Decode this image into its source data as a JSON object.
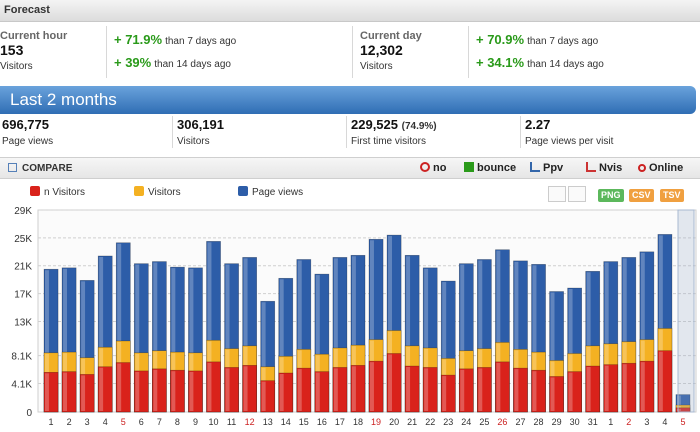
{
  "forecast": {
    "title": "Forecast",
    "current_hour": {
      "label": "Current hour",
      "value": "153",
      "unit": "Visitors",
      "cmp7_pct": "+ 71.9%",
      "cmp7_text": "than 7 days ago",
      "cmp14_pct": "+ 39%",
      "cmp14_text": "than 14 days ago"
    },
    "current_day": {
      "label": "Current day",
      "value": "12,302",
      "unit": "Visitors",
      "cmp7_pct": "+ 70.9%",
      "cmp7_text": "than 7 days ago",
      "cmp14_pct": "+ 34.1%",
      "cmp14_text": "than 14 days ago"
    }
  },
  "summary": {
    "title": "Last 2 months",
    "items": [
      {
        "value": "696,775",
        "note": "",
        "label": "Page views"
      },
      {
        "value": "306,191",
        "note": "",
        "label": "Visitors"
      },
      {
        "value": "229,525",
        "note": "(74.9%)",
        "label": "First time visitors"
      },
      {
        "value": "2.27",
        "note": "",
        "label": "Page views per visit"
      }
    ]
  },
  "compare": {
    "title": "COMPARE",
    "buttons": [
      {
        "label": "no",
        "icon": "no-icon",
        "color": "#cc2222"
      },
      {
        "label": "bounce",
        "icon": "bounce-icon",
        "color": "#2a9a1a"
      },
      {
        "label": "Ppv",
        "icon": "chart-small-icon",
        "color": "#3366aa"
      },
      {
        "label": "Nvis",
        "icon": "chart-small-icon",
        "color": "#cc3333"
      },
      {
        "label": "Online",
        "icon": "broadcast-icon",
        "color": "#cc2222"
      }
    ]
  },
  "legend": [
    {
      "label": "n Visitors",
      "color": "#d9221b"
    },
    {
      "label": "Visitors",
      "color": "#f4b122"
    },
    {
      "label": "Page views",
      "color": "#2d5da8"
    }
  ],
  "exports": [
    {
      "label": "PNG",
      "color": "#5cb85c"
    },
    {
      "label": "CSV",
      "color": "#f0a040"
    },
    {
      "label": "TSV",
      "color": "#f0a040"
    }
  ],
  "chart_data": {
    "type": "bar",
    "y_ticks": [
      "29K",
      "25K",
      "21K",
      "17K",
      "13K",
      "8.1K",
      "4.1K",
      "0"
    ],
    "ylim": [
      0,
      29000
    ],
    "categories": [
      "1",
      "2",
      "3",
      "4",
      "5",
      "6",
      "7",
      "8",
      "9",
      "10",
      "11",
      "12",
      "13",
      "14",
      "15",
      "16",
      "17",
      "18",
      "19",
      "20",
      "21",
      "22",
      "23",
      "24",
      "25",
      "26",
      "27",
      "28",
      "29",
      "30",
      "31",
      "1",
      "2",
      "3",
      "4",
      "5"
    ],
    "highlight_labels": [
      "5",
      "12",
      "19",
      "26",
      "2",
      "5"
    ],
    "highlight_color": "#cc2222",
    "series": [
      {
        "name": "Page views",
        "color": "#2d5da8",
        "values": [
          20500,
          20700,
          18900,
          22400,
          24300,
          21300,
          21600,
          20800,
          20700,
          24500,
          21300,
          22200,
          15900,
          19200,
          21900,
          19800,
          22200,
          22500,
          24800,
          25400,
          22500,
          20700,
          18800,
          21300,
          21900,
          23300,
          21700,
          21200,
          17300,
          17800,
          20200,
          21600,
          22200,
          23000,
          25500,
          2500
        ]
      },
      {
        "name": "Visitors",
        "color": "#f4b122",
        "values": [
          8500,
          8600,
          7800,
          9300,
          10200,
          8500,
          8800,
          8600,
          8500,
          10300,
          9100,
          9500,
          6500,
          8000,
          9000,
          8300,
          9200,
          9600,
          10400,
          11700,
          9500,
          9200,
          7700,
          8800,
          9100,
          10000,
          9000,
          8600,
          7400,
          8400,
          9500,
          9800,
          10100,
          10400,
          12000,
          1000
        ]
      },
      {
        "name": "n Visitors",
        "color": "#d9221b",
        "values": [
          5700,
          5800,
          5400,
          6500,
          7100,
          5900,
          6200,
          6000,
          5900,
          7200,
          6400,
          6700,
          4500,
          5600,
          6300,
          5800,
          6400,
          6700,
          7300,
          8400,
          6600,
          6400,
          5300,
          6200,
          6400,
          7200,
          6300,
          6000,
          5100,
          5800,
          6600,
          6800,
          7000,
          7300,
          8800,
          600
        ]
      }
    ],
    "grid": true,
    "legend_position": "top-left"
  }
}
